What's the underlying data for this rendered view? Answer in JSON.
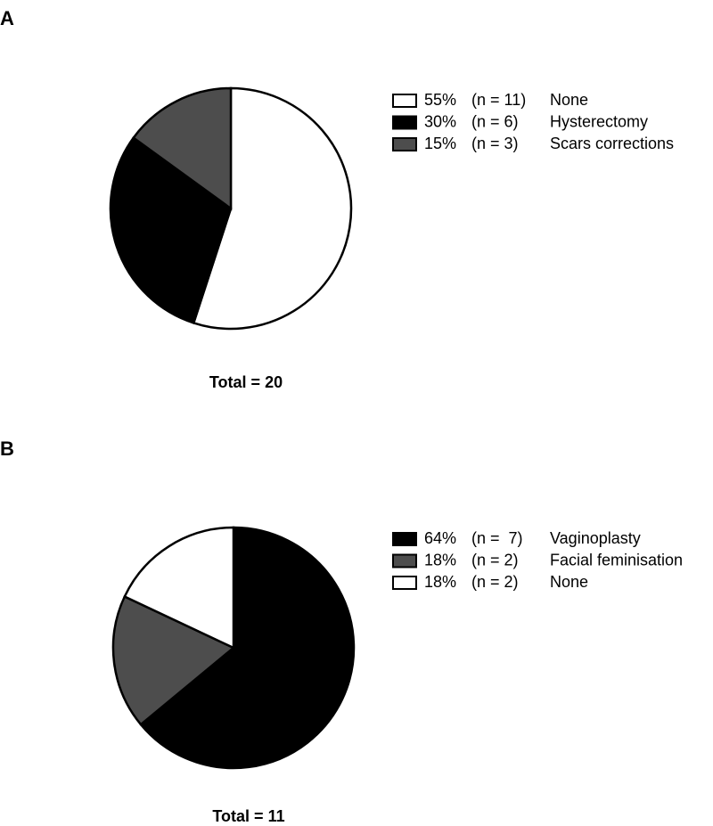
{
  "chart_data": [
    {
      "type": "pie",
      "label": "A",
      "categories": [
        "None",
        "Hysterectomy",
        "Scars corrections"
      ],
      "values": [
        55,
        30,
        15
      ],
      "value_labels": [
        "55%",
        "30%",
        "15%"
      ],
      "n": [
        11,
        6,
        3
      ],
      "n_labels": [
        "(n = 11)",
        "(n = 6)",
        "(n = 3)"
      ],
      "colors": [
        "#ffffff",
        "#000000",
        "#4d4d4d"
      ],
      "footnote": "Total = 20"
    },
    {
      "type": "pie",
      "label": "B",
      "categories": [
        "Vaginoplasty",
        "Facial feminisation",
        "None"
      ],
      "values": [
        64,
        18,
        18
      ],
      "value_labels": [
        "64%",
        "18%",
        "18%"
      ],
      "n": [
        7,
        2,
        2
      ],
      "n_labels": [
        "(n =  7)",
        "(n = 2)",
        "(n = 2)"
      ],
      "colors": [
        "#000000",
        "#4d4d4d",
        "#ffffff"
      ],
      "footnote": "Total = 11"
    }
  ]
}
